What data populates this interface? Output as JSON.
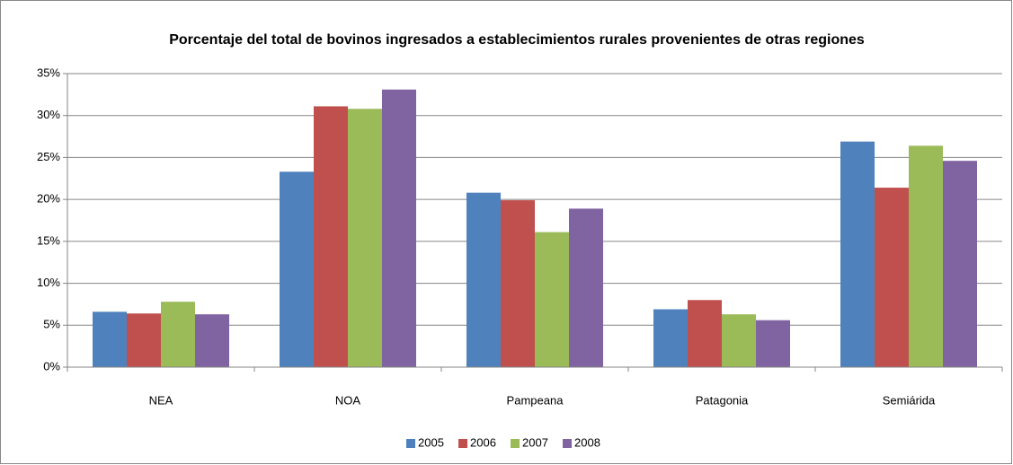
{
  "chart_data": {
    "type": "bar",
    "title": "Porcentaje del total de bovinos ingresados a establecimientos rurales provenientes de otras regiones",
    "categories": [
      "NEA",
      "NOA",
      "Pampeana",
      "Patagonia",
      "Semiárida"
    ],
    "series": [
      {
        "name": "2005",
        "color": "#4f81bd",
        "values": [
          6.6,
          23.3,
          20.8,
          6.9,
          26.9
        ]
      },
      {
        "name": "2006",
        "color": "#c0504d",
        "values": [
          6.4,
          31.1,
          19.9,
          8.0,
          21.4
        ]
      },
      {
        "name": "2007",
        "color": "#9bbb59",
        "values": [
          7.8,
          30.8,
          16.1,
          6.3,
          26.4
        ]
      },
      {
        "name": "2008",
        "color": "#8064a2",
        "values": [
          6.3,
          33.1,
          18.9,
          5.6,
          24.6
        ]
      }
    ],
    "ylim": [
      0,
      35
    ],
    "yticks": [
      {
        "value": 0,
        "label": "0%"
      },
      {
        "value": 5,
        "label": "5%"
      },
      {
        "value": 10,
        "label": "10%"
      },
      {
        "value": 15,
        "label": "15%"
      },
      {
        "value": 20,
        "label": "20%"
      },
      {
        "value": 25,
        "label": "25%"
      },
      {
        "value": 30,
        "label": "30%"
      },
      {
        "value": 35,
        "label": "35%"
      }
    ],
    "grid": true,
    "legend": "bottom"
  }
}
